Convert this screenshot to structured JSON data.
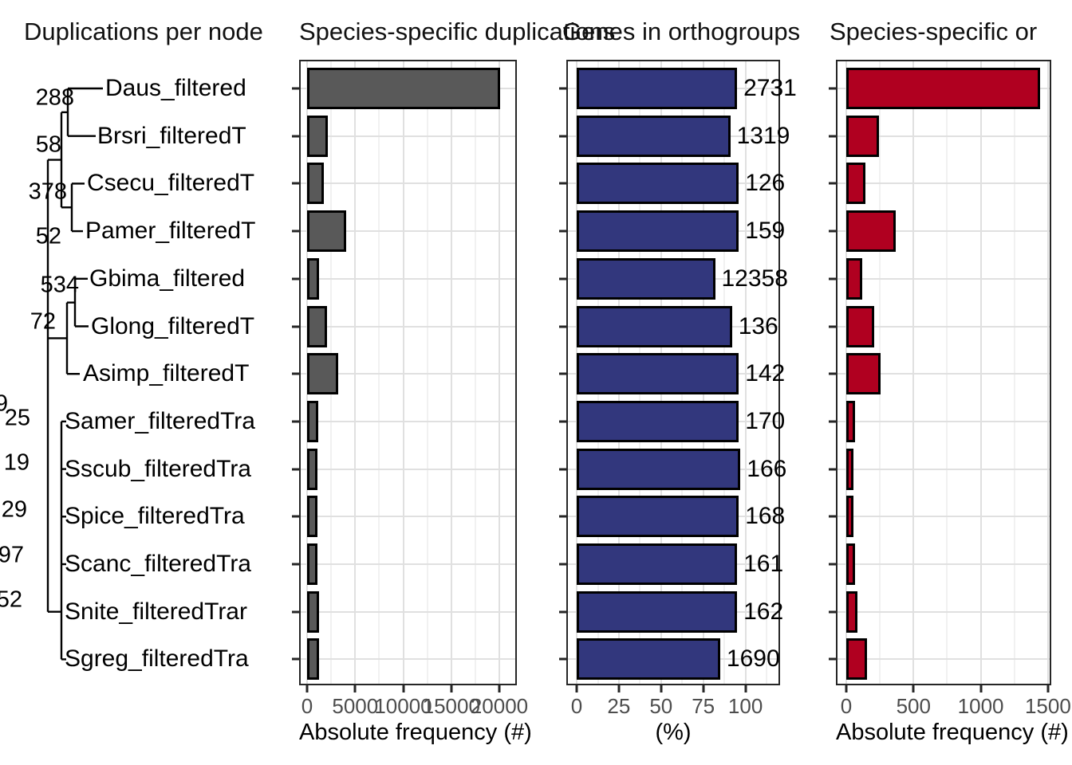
{
  "figure": {
    "background": "#ffffff"
  },
  "titles": [
    {
      "text": "Duplications per node"
    },
    {
      "text": "Species-specific duplications"
    },
    {
      "text": "Genes in orthogroups"
    },
    {
      "text": "Species-specific or"
    }
  ],
  "tree": {
    "species": [
      "Daus_filtered",
      "Brsri_filteredT",
      "Csecu_filteredT",
      "Pamer_filteredT",
      "Gbima_filtered",
      "Glong_filteredT",
      "Asimp_filteredT",
      "Samer_filteredTra",
      "Sscub_filteredTra",
      "Spice_filteredTra",
      "Scanc_filteredTra",
      "Snite_filteredTrar",
      "Sgreg_filteredTra"
    ],
    "node_labels": [
      "288",
      "58",
      "378",
      "52",
      "534",
      "72",
      "9",
      "25",
      "19",
      "29",
      "97",
      "52"
    ]
  },
  "chart_data": [
    {
      "type": "bar",
      "orientation": "horizontal",
      "panel": "species-specific-duplications",
      "title": "Species-specific duplications",
      "categories": [
        "Daus_filtered",
        "Brsri_filteredT",
        "Csecu_filteredT",
        "Pamer_filteredT",
        "Gbima_filtered",
        "Glong_filteredT",
        "Asimp_filteredT",
        "Samer_filteredTra",
        "Sscub_filteredTra",
        "Spice_filteredTra",
        "Scanc_filteredTra",
        "Snite_filteredTrar",
        "Sgreg_filteredTra"
      ],
      "values": [
        20100,
        2150,
        1700,
        4050,
        1200,
        2100,
        3250,
        1150,
        1100,
        1100,
        1100,
        1250,
        1250
      ],
      "xlabel": "Absolute frequency (#)",
      "xticks": [
        0,
        5000,
        10000,
        15000,
        20000
      ],
      "xlim": [
        0,
        21800
      ],
      "grid": true,
      "bar_color": "#595959",
      "bar_border": "#000000"
    },
    {
      "type": "bar",
      "orientation": "horizontal",
      "panel": "genes-in-orthogroups",
      "title": "Genes in orthogroups",
      "categories": [
        "Daus_filtered",
        "Brsri_filteredT",
        "Csecu_filteredT",
        "Pamer_filteredT",
        "Gbima_filtered",
        "Glong_filteredT",
        "Asimp_filteredT",
        "Samer_filteredTra",
        "Sscub_filteredTra",
        "Spice_filteredTra",
        "Scanc_filteredTra",
        "Snite_filteredTrar",
        "Sgreg_filteredTra"
      ],
      "values": [
        95,
        91,
        96,
        96,
        82,
        92,
        96,
        96,
        97,
        96,
        95,
        95,
        85
      ],
      "bar_labels": [
        "2731",
        "1319",
        "126",
        "159",
        "12358",
        "136",
        "142",
        "170",
        "166",
        "168",
        "161",
        "162",
        "1690"
      ],
      "xlabel": "(%)",
      "xticks": [
        0,
        25,
        50,
        75,
        100
      ],
      "xlim": [
        0,
        120
      ],
      "grid": true,
      "bar_color": "#32377d",
      "bar_border": "#000000"
    },
    {
      "type": "bar",
      "orientation": "horizontal",
      "panel": "species-specific-orthogroups",
      "title": "Species-specific or",
      "categories": [
        "Daus_filtered",
        "Brsri_filteredT",
        "Csecu_filteredT",
        "Pamer_filteredT",
        "Gbima_filtered",
        "Glong_filteredT",
        "Asimp_filteredT",
        "Samer_filteredTra",
        "Sscub_filteredTra",
        "Spice_filteredTra",
        "Scanc_filteredTra",
        "Snite_filteredTrar",
        "Sgreg_filteredTra"
      ],
      "values": [
        1440,
        240,
        145,
        370,
        120,
        205,
        255,
        65,
        55,
        55,
        65,
        85,
        155
      ],
      "xlabel": "Absolute frequency (#)",
      "xticks": [
        0,
        500,
        1000,
        1500
      ],
      "xlim": [
        0,
        1520
      ],
      "grid": true,
      "bar_color": "#b00020",
      "bar_border": "#000000"
    }
  ]
}
